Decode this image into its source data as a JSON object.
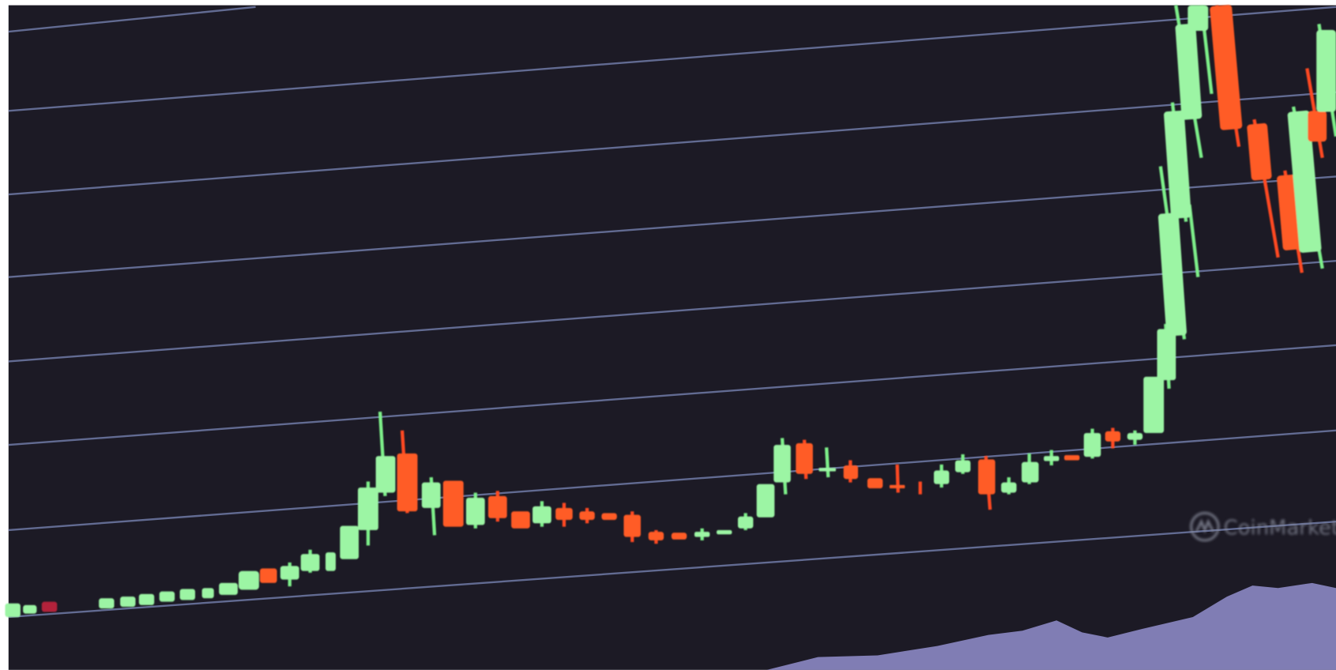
{
  "watermark": {
    "text": "CoinMarketCap"
  }
}
